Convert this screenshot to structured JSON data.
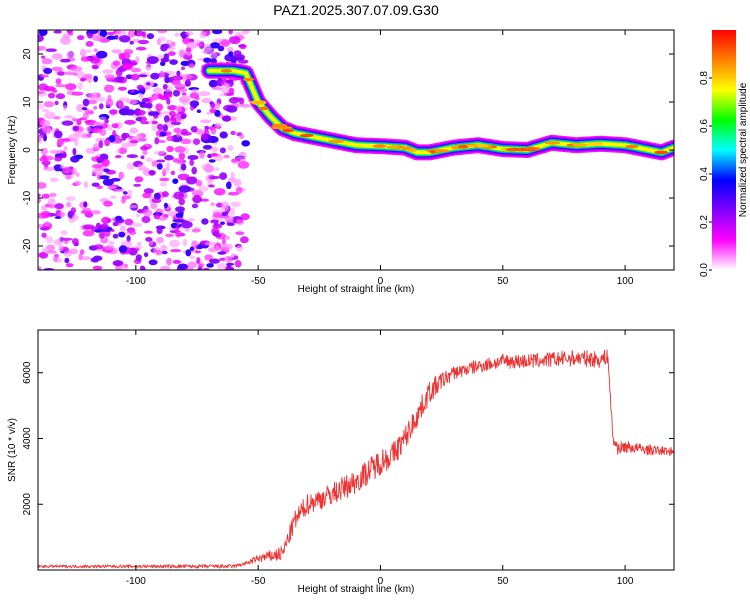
{
  "figure": {
    "title": "PAZ1.2025.307.07.09.G30"
  },
  "chart_data": [
    {
      "type": "heatmap",
      "id": "spectrogram",
      "title": "PAZ1.2025.307.07.09.G30",
      "xlabel": "Height of straight line (km)",
      "ylabel": "Frequency (Hz)",
      "xlim": [
        -140,
        120
      ],
      "ylim": [
        -25,
        25
      ],
      "xticks": [
        -100,
        -50,
        0,
        50,
        100
      ],
      "yticks": [
        -20,
        -10,
        0,
        10,
        20
      ],
      "colorbar": {
        "label": "Normalized spectral amplitude",
        "range": [
          0,
          1
        ],
        "ticks": [
          0.0,
          0.2,
          0.4,
          0.6,
          0.8
        ],
        "colors": [
          "#ffffff",
          "#ff00ff",
          "#8000ff",
          "#0000ff",
          "#00ffff",
          "#00ff00",
          "#ffff00",
          "#ff8000",
          "#ff0000"
        ]
      },
      "ridge": {
        "x": [
          -70,
          -60,
          -55,
          -50,
          -45,
          -40,
          -35,
          -30,
          -20,
          -10,
          0,
          10,
          15,
          20,
          30,
          40,
          50,
          60,
          70,
          80,
          90,
          100,
          110,
          115,
          120
        ],
        "y": [
          16.5,
          16.5,
          16.0,
          10.0,
          7.0,
          4.5,
          3.5,
          3.0,
          2.0,
          1.0,
          0.8,
          0.5,
          -0.5,
          -0.5,
          0.5,
          1.0,
          0.2,
          0.0,
          1.5,
          1.0,
          1.3,
          1.0,
          0.0,
          -0.5,
          0.5
        ],
        "peak_amplitude": 0.95
      },
      "noise_region": {
        "x": [
          -140,
          -55
        ],
        "y": [
          -25,
          25
        ],
        "amplitude": [
          0.05,
          0.35
        ]
      }
    },
    {
      "type": "line",
      "id": "snr",
      "xlabel": "Height of straight line (km)",
      "ylabel": "SNR (10 * v/v)",
      "xlim": [
        -140,
        120
      ],
      "ylim": [
        0,
        7300
      ],
      "xticks": [
        -100,
        -50,
        0,
        50,
        100
      ],
      "yticks": [
        2000,
        4000,
        6000
      ],
      "color": "#ee3333",
      "envelope": {
        "x": [
          -140,
          -100,
          -60,
          -55,
          -50,
          -45,
          -40,
          -35,
          -30,
          -20,
          -10,
          0,
          5,
          10,
          15,
          20,
          25,
          30,
          40,
          50,
          60,
          70,
          80,
          90,
          93,
          95,
          97,
          100,
          110,
          120
        ],
        "y": [
          110,
          110,
          110,
          200,
          350,
          420,
          500,
          1500,
          2000,
          2300,
          2700,
          3300,
          3500,
          4000,
          4700,
          5400,
          5750,
          6000,
          6200,
          6350,
          6350,
          6400,
          6450,
          6400,
          6500,
          4000,
          3700,
          3750,
          3650,
          3600
        ]
      },
      "noise": {
        "x": [
          -140,
          -55,
          -35,
          0,
          20,
          30,
          90,
          95,
          120
        ],
        "amp": [
          40,
          60,
          300,
          400,
          350,
          200,
          250,
          200,
          120
        ]
      }
    }
  ]
}
